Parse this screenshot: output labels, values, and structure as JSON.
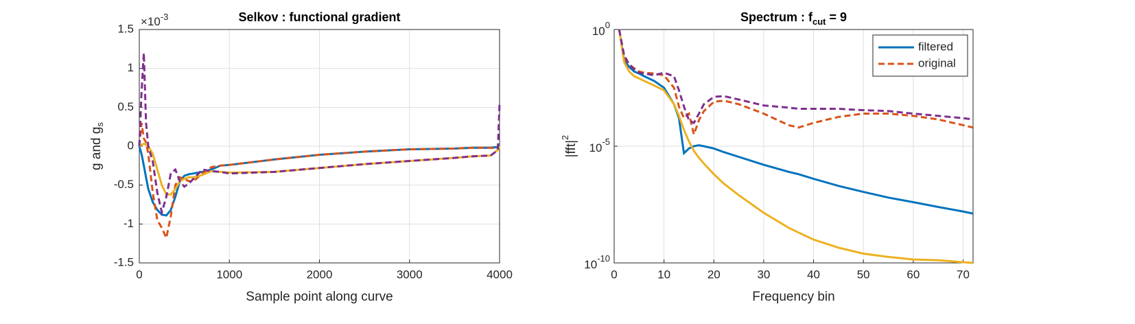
{
  "chart_data": [
    {
      "type": "line",
      "title": "Selkov : functional gradient",
      "xlabel": "Sample point along curve",
      "ylabel": "g and g",
      "ylabel_sub": "s",
      "y_multiplier": "×10",
      "y_multiplier_exp": "-3",
      "xlim": [
        0,
        4000
      ],
      "xticks": [
        0,
        1000,
        2000,
        3000,
        4000
      ],
      "ylim": [
        -1.5,
        1.5
      ],
      "yticks": [
        -1.5,
        -1,
        -0.5,
        0,
        0.5,
        1,
        1.5
      ],
      "grid": true,
      "ylog": false,
      "x": [
        0,
        25,
        50,
        75,
        100,
        150,
        200,
        250,
        300,
        350,
        400,
        450,
        500,
        550,
        600,
        700,
        800,
        900,
        1000,
        1500,
        2000,
        2500,
        3000,
        3500,
        3700,
        3900,
        3980,
        4000
      ],
      "series": [
        {
          "color": "#0072BD",
          "style": "solid",
          "values": [
            0,
            -0.1,
            -0.25,
            -0.4,
            -0.55,
            -0.72,
            -0.82,
            -0.88,
            -0.89,
            -0.82,
            -0.65,
            -0.45,
            -0.38,
            -0.36,
            -0.35,
            -0.33,
            -0.3,
            -0.25,
            -0.24,
            -0.17,
            -0.11,
            -0.07,
            -0.04,
            -0.03,
            -0.02,
            -0.02,
            -0.01,
            0
          ]
        },
        {
          "color": "#D95319",
          "style": "dashed",
          "values": [
            0,
            0.3,
            0.1,
            0.05,
            -0.1,
            -0.6,
            -0.95,
            -1.05,
            -1.18,
            -0.9,
            -0.5,
            -0.4,
            -0.42,
            -0.45,
            -0.45,
            -0.35,
            -0.27,
            -0.25,
            -0.24,
            -0.17,
            -0.11,
            -0.07,
            -0.04,
            -0.03,
            -0.02,
            -0.02,
            -0.03,
            0
          ]
        },
        {
          "color": "#EDB120",
          "style": "solid",
          "values": [
            0,
            0.02,
            0.03,
            0.02,
            0,
            -0.1,
            -0.3,
            -0.5,
            -0.62,
            -0.62,
            -0.55,
            -0.45,
            -0.42,
            -0.4,
            -0.4,
            -0.37,
            -0.32,
            -0.33,
            -0.34,
            -0.33,
            -0.28,
            -0.23,
            -0.19,
            -0.15,
            -0.13,
            -0.12,
            -0.05,
            0
          ]
        },
        {
          "color": "#7E2F8E",
          "style": "dashed",
          "values": [
            0,
            0.7,
            1.2,
            0.3,
            0,
            -0.2,
            -0.6,
            -0.85,
            -0.65,
            -0.35,
            -0.3,
            -0.45,
            -0.52,
            -0.48,
            -0.42,
            -0.3,
            -0.32,
            -0.33,
            -0.35,
            -0.33,
            -0.28,
            -0.23,
            -0.19,
            -0.15,
            -0.13,
            -0.12,
            -0.05,
            0.55
          ]
        }
      ]
    },
    {
      "type": "line",
      "title": "Spectrum : f",
      "title_sub": "cut",
      "title_end": " = 9",
      "xlabel": "Frequency bin",
      "ylabel": "|fft|",
      "ylabel_sup": "2",
      "xlim": [
        0,
        72
      ],
      "xticks": [
        0,
        10,
        20,
        30,
        40,
        50,
        60,
        70
      ],
      "ylim": [
        1e-10,
        1
      ],
      "yticks": [
        {
          "value": 1e-10,
          "label": "10",
          "exponent": "-10"
        },
        {
          "value": 1e-05,
          "label": "10",
          "exponent": "-5"
        },
        {
          "value": 1,
          "label": "10",
          "exponent": "0"
        }
      ],
      "grid": true,
      "ylog": true,
      "legend": "northeast",
      "x": [
        1,
        2,
        3,
        4,
        5,
        6,
        8,
        10,
        12,
        13,
        14,
        15,
        16,
        17,
        18,
        20,
        22,
        25,
        30,
        35,
        37,
        40,
        45,
        50,
        55,
        60,
        65,
        70,
        72
      ],
      "series": [
        {
          "name": "filtered",
          "color": "#0072BD",
          "style": "solid",
          "values": [
            1,
            0.05,
            0.025,
            0.016,
            0.013,
            0.01,
            0.0063,
            0.0032,
            0.00063,
            0.00016,
            5e-06,
            8e-06,
            1e-05,
            1.1e-05,
            1e-05,
            8e-06,
            5.6e-06,
            3.5e-06,
            1.6e-06,
            8e-07,
            6.3e-07,
            4e-07,
            2e-07,
            1.1e-07,
            6.3e-08,
            4e-08,
            2.5e-08,
            1.6e-08,
            1.3e-08
          ]
        },
        {
          "name": "original",
          "color": "#D95319",
          "style": "dashed",
          "values": [
            1,
            0.063,
            0.032,
            0.022,
            0.016,
            0.014,
            0.013,
            0.011,
            0.0032,
            0.0005,
            0.00016,
            0.00025,
            3.2e-05,
            0.00013,
            0.00032,
            0.0008,
            0.0009,
            0.00063,
            0.00025,
            8e-05,
            6.3e-05,
            0.0001,
            0.00018,
            0.00025,
            0.00025,
            0.0002,
            0.00014,
            8e-05,
            6.3e-05
          ]
        },
        {
          "color": "#EDB120",
          "style": "solid",
          "values": [
            1,
            0.04,
            0.016,
            0.01,
            0.008,
            0.0063,
            0.004,
            0.0025,
            0.00063,
            0.0002,
            5e-05,
            1.6e-05,
            6.3e-06,
            3.2e-06,
            1.8e-06,
            6.3e-07,
            2.5e-07,
            8e-08,
            1.4e-08,
            3.2e-09,
            2e-09,
            1e-09,
            4.5e-10,
            2.5e-10,
            1.8e-10,
            1.4e-10,
            1.3e-10,
            1.07e-10,
            1e-10
          ]
        },
        {
          "color": "#7E2F8E",
          "style": "dashed",
          "values": [
            1,
            0.08,
            0.032,
            0.02,
            0.014,
            0.013,
            0.011,
            0.014,
            0.01,
            0.0025,
            0.0005,
            0.00013,
            0.0001,
            0.00025,
            0.00063,
            0.0013,
            0.0014,
            0.001,
            0.00056,
            0.00045,
            0.0004,
            0.0004,
            0.0004,
            0.00035,
            0.00032,
            0.00025,
            0.0002,
            0.00016,
            0.00014
          ]
        }
      ]
    }
  ]
}
